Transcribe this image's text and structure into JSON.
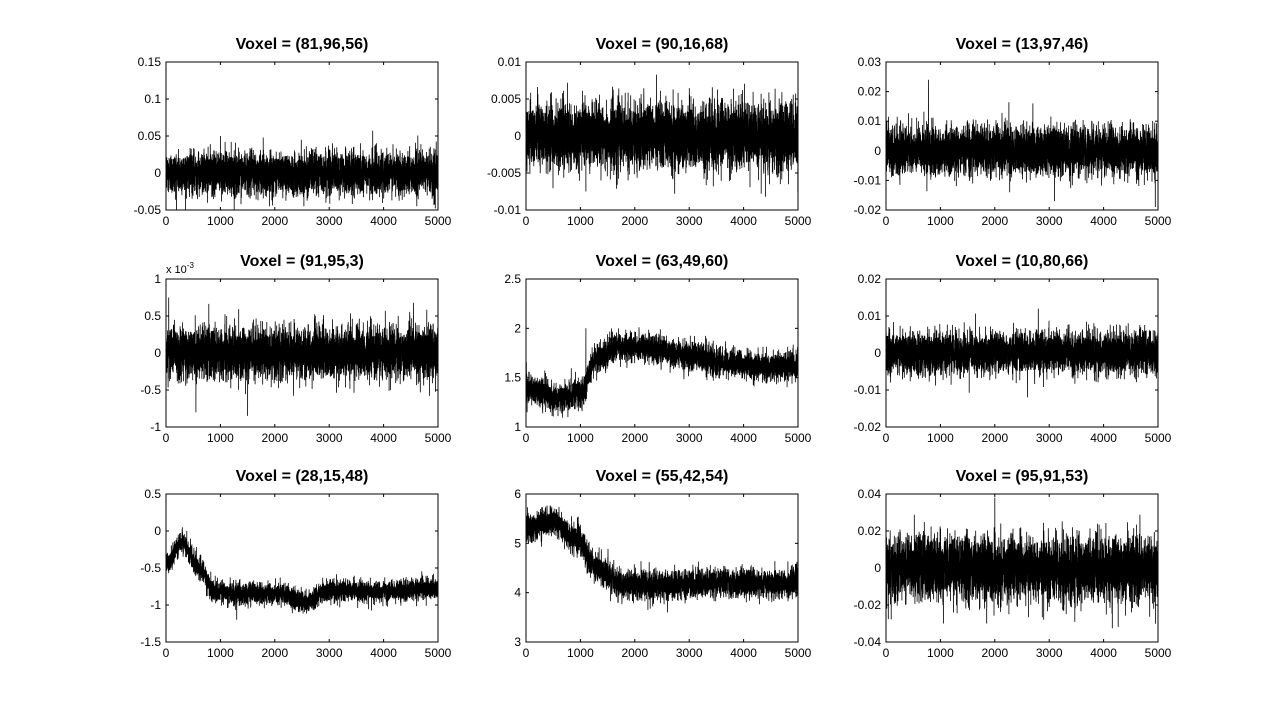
{
  "chart_data": [
    {
      "type": "line",
      "title": "Voxel = (81,96,56)",
      "xlim": [
        0,
        5000
      ],
      "ylim": [
        -0.05,
        0.15
      ],
      "xticks": [
        0,
        1000,
        2000,
        3000,
        4000,
        5000
      ],
      "xtick_labels": [
        "0",
        "1000",
        "2000",
        "3000",
        "4000",
        "5000"
      ],
      "yticks": [
        -0.05,
        0,
        0.05,
        0.1,
        0.15
      ],
      "ytick_labels": [
        "-0.05",
        "0",
        "0.05",
        "0.1",
        "0.15"
      ],
      "series": [
        {
          "n": 5000,
          "mean": 0,
          "noise_sd": 0.014,
          "spikes": [
            [
              3800,
              0.057
            ],
            [
              1000,
              0.05
            ],
            [
              1900,
              -0.045
            ],
            [
              4950,
              -0.048
            ]
          ]
        }
      ]
    },
    {
      "type": "line",
      "title": "Voxel = (90,16,68)",
      "xlim": [
        0,
        5000
      ],
      "ylim": [
        -0.01,
        0.01
      ],
      "xticks": [
        0,
        1000,
        2000,
        3000,
        4000,
        5000
      ],
      "xtick_labels": [
        "0",
        "1000",
        "2000",
        "3000",
        "4000",
        "5000"
      ],
      "yticks": [
        -0.01,
        -0.005,
        0,
        0.005,
        0.01
      ],
      "ytick_labels": [
        "-0.01",
        "-0.005",
        "0",
        "0.005",
        "0.01"
      ],
      "series": [
        {
          "n": 5000,
          "mean": 0,
          "noise_sd": 0.0022,
          "spikes": [
            [
              2400,
              0.0083
            ],
            [
              4400,
              -0.0082
            ],
            [
              1100,
              -0.0075
            ]
          ]
        }
      ]
    },
    {
      "type": "line",
      "title": "Voxel = (13,97,46)",
      "xlim": [
        0,
        5000
      ],
      "ylim": [
        -0.02,
        0.03
      ],
      "xticks": [
        0,
        1000,
        2000,
        3000,
        4000,
        5000
      ],
      "xtick_labels": [
        "0",
        "1000",
        "2000",
        "3000",
        "4000",
        "5000"
      ],
      "yticks": [
        -0.02,
        -0.01,
        0,
        0.01,
        0.02,
        0.03
      ],
      "ytick_labels": [
        "-0.02",
        "-0.01",
        "0",
        "0.01",
        "0.02",
        "0.03"
      ],
      "series": [
        {
          "n": 5000,
          "mean": 0,
          "noise_sd": 0.004,
          "spikes": [
            [
              780,
              0.024
            ],
            [
              4950,
              -0.019
            ],
            [
              2700,
              0.016
            ]
          ]
        }
      ]
    },
    {
      "type": "line",
      "title": "Voxel = (91,95,3)",
      "xlim": [
        0,
        5000
      ],
      "ylim": [
        -1,
        1
      ],
      "exponent_label": "x 10",
      "exponent_power": "-3",
      "xticks": [
        0,
        1000,
        2000,
        3000,
        4000,
        5000
      ],
      "xtick_labels": [
        "0",
        "1000",
        "2000",
        "3000",
        "4000",
        "5000"
      ],
      "yticks": [
        -1,
        -0.5,
        0,
        0.5,
        1
      ],
      "ytick_labels": [
        "-1",
        "-0.5",
        "0",
        "0.5",
        "1"
      ],
      "series": [
        {
          "n": 5000,
          "mean": 0,
          "noise_sd": 0.17,
          "spikes": [
            [
              1500,
              -0.85
            ],
            [
              4550,
              0.68
            ],
            [
              550,
              -0.8
            ],
            [
              50,
              0.75
            ]
          ]
        }
      ]
    },
    {
      "type": "line",
      "title": "Voxel = (63,49,60)",
      "xlim": [
        0,
        5000
      ],
      "ylim": [
        1,
        2.5
      ],
      "xticks": [
        0,
        1000,
        2000,
        3000,
        4000,
        5000
      ],
      "xtick_labels": [
        "0",
        "1000",
        "2000",
        "3000",
        "4000",
        "5000"
      ],
      "yticks": [
        1,
        1.5,
        2,
        2.5
      ],
      "ytick_labels": [
        "1",
        "1.5",
        "2",
        "2.5"
      ],
      "series": [
        {
          "n": 5000,
          "noise_sd": 0.07,
          "trend": [
            [
              0,
              1.38
            ],
            [
              600,
              1.3
            ],
            [
              1000,
              1.35
            ],
            [
              1300,
              1.7
            ],
            [
              1700,
              1.82
            ],
            [
              2300,
              1.8
            ],
            [
              3000,
              1.72
            ],
            [
              3700,
              1.65
            ],
            [
              4200,
              1.62
            ],
            [
              5000,
              1.62
            ]
          ],
          "spikes": [
            [
              1100,
              2.0
            ],
            [
              20,
              1.15
            ]
          ]
        }
      ]
    },
    {
      "type": "line",
      "title": "Voxel = (10,80,66)",
      "xlim": [
        0,
        5000
      ],
      "ylim": [
        -0.02,
        0.02
      ],
      "xticks": [
        0,
        1000,
        2000,
        3000,
        4000,
        5000
      ],
      "xtick_labels": [
        "0",
        "1000",
        "2000",
        "3000",
        "4000",
        "5000"
      ],
      "yticks": [
        -0.02,
        -0.01,
        0,
        0.01,
        0.02
      ],
      "ytick_labels": [
        "-0.02",
        "-0.01",
        "0",
        "0.01",
        "0.02"
      ],
      "series": [
        {
          "n": 5000,
          "mean": 0,
          "noise_sd": 0.0028,
          "spikes": [
            [
              2800,
              0.012
            ],
            [
              2600,
              -0.012
            ]
          ]
        }
      ]
    },
    {
      "type": "line",
      "title": "Voxel = (28,15,48)",
      "xlim": [
        0,
        5000
      ],
      "ylim": [
        -1.5,
        0.5
      ],
      "xticks": [
        0,
        1000,
        2000,
        3000,
        4000,
        5000
      ],
      "xtick_labels": [
        "0",
        "1000",
        "2000",
        "3000",
        "4000",
        "5000"
      ],
      "yticks": [
        -1.5,
        -1,
        -0.5,
        0,
        0.5
      ],
      "ytick_labels": [
        "-1.5",
        "-1",
        "-0.5",
        "0",
        "0.5"
      ],
      "series": [
        {
          "n": 5000,
          "noise_sd": 0.07,
          "trend": [
            [
              0,
              -0.45
            ],
            [
              300,
              -0.15
            ],
            [
              600,
              -0.5
            ],
            [
              900,
              -0.82
            ],
            [
              1300,
              -0.85
            ],
            [
              2000,
              -0.85
            ],
            [
              2600,
              -0.95
            ],
            [
              3000,
              -0.8
            ],
            [
              4000,
              -0.82
            ],
            [
              5000,
              -0.78
            ]
          ],
          "spikes": [
            [
              1300,
              -1.2
            ],
            [
              300,
              0.05
            ]
          ]
        }
      ]
    },
    {
      "type": "line",
      "title": "Voxel = (55,42,54)",
      "xlim": [
        0,
        5000
      ],
      "ylim": [
        3,
        6
      ],
      "xticks": [
        0,
        1000,
        2000,
        3000,
        4000,
        5000
      ],
      "xtick_labels": [
        "0",
        "1000",
        "2000",
        "3000",
        "4000",
        "5000"
      ],
      "yticks": [
        3,
        4,
        5,
        6
      ],
      "ytick_labels": [
        "3",
        "4",
        "5",
        "6"
      ],
      "series": [
        {
          "n": 5000,
          "noise_sd": 0.14,
          "trend": [
            [
              0,
              5.3
            ],
            [
              500,
              5.45
            ],
            [
              900,
              5.1
            ],
            [
              1300,
              4.5
            ],
            [
              1800,
              4.15
            ],
            [
              2500,
              4.15
            ],
            [
              3500,
              4.2
            ],
            [
              5000,
              4.2
            ]
          ],
          "spikes": [
            [
              450,
              5.75
            ],
            [
              2600,
              3.6
            ]
          ]
        }
      ]
    },
    {
      "type": "line",
      "title": "Voxel = (95,91,53)",
      "xlim": [
        0,
        5000
      ],
      "ylim": [
        -0.04,
        0.04
      ],
      "xticks": [
        0,
        1000,
        2000,
        3000,
        4000,
        5000
      ],
      "xtick_labels": [
        "0",
        "1000",
        "2000",
        "3000",
        "4000",
        "5000"
      ],
      "yticks": [
        -0.04,
        -0.02,
        0,
        0.02,
        0.04
      ],
      "ytick_labels": [
        "-0.04",
        "-0.02",
        "0",
        "0.02",
        "0.04"
      ],
      "series": [
        {
          "n": 5000,
          "mean": 0,
          "noise_sd": 0.0085,
          "spikes": [
            [
              2000,
              0.038
            ],
            [
              1850,
              -0.03
            ],
            [
              2900,
              -0.028
            ]
          ]
        }
      ]
    }
  ]
}
